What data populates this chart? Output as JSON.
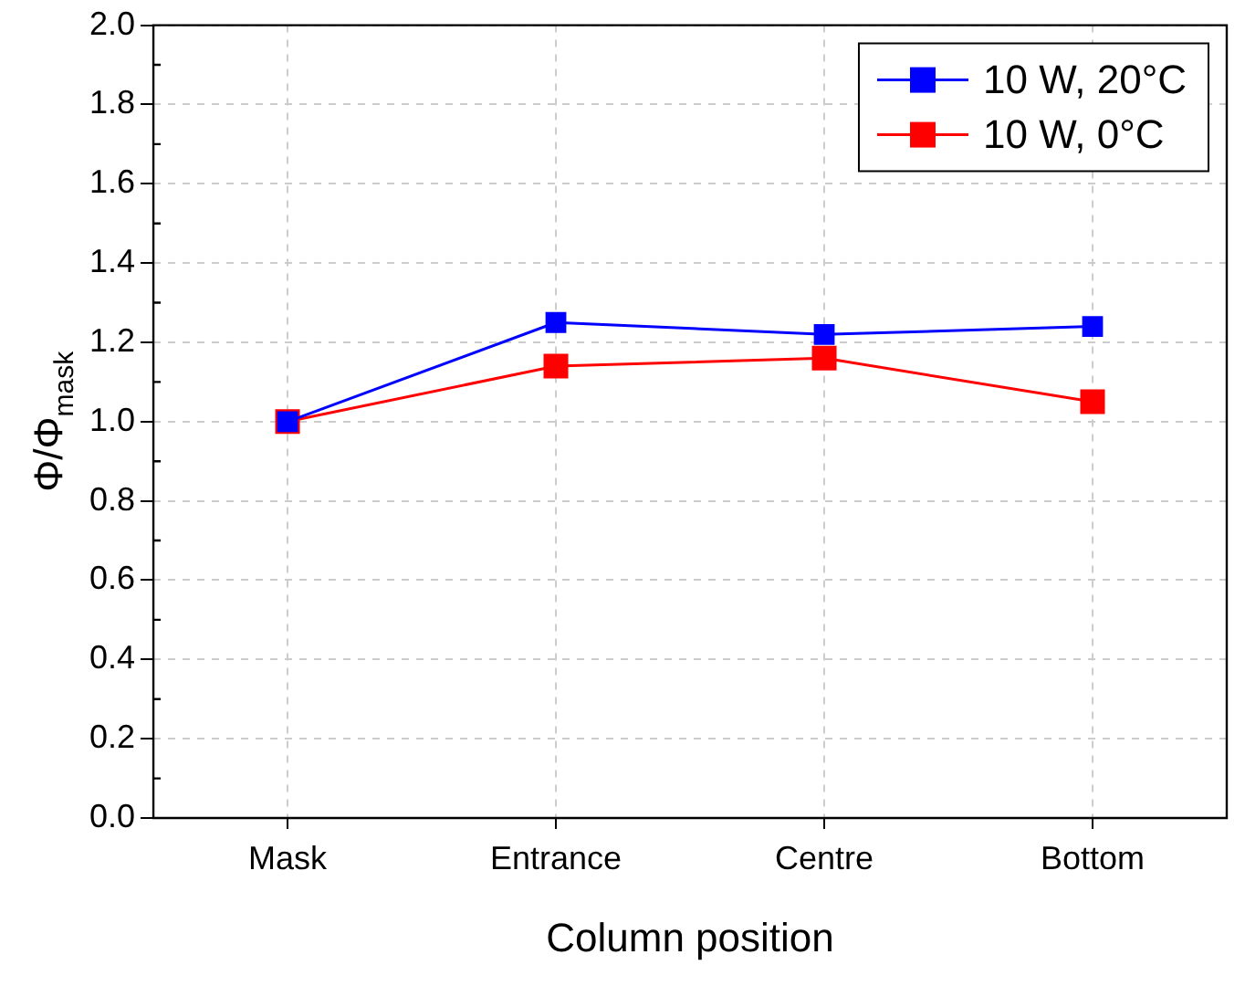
{
  "chart_data": {
    "type": "line",
    "xlabel": "Column position",
    "ylabel": "Φ/Φ$_{mask}$",
    "categories": [
      "Mask",
      "Entrance",
      "Centre",
      "Bottom"
    ],
    "series": [
      {
        "name": "10 W, 20°C",
        "color": "#0000ff",
        "values": [
          1.0,
          1.25,
          1.22,
          1.24
        ]
      },
      {
        "name": "10 W, 0°C",
        "color": "#ff0000",
        "values": [
          1.0,
          1.14,
          1.16,
          1.05
        ]
      }
    ],
    "ylim": [
      0,
      2
    ],
    "yticks": [
      {
        "value": 0,
        "label": "0.0"
      },
      0.2,
      0.4,
      0.6,
      0.8,
      {
        "value": 1,
        "label": "1.0"
      },
      1.2,
      1.4,
      1.6,
      1.8,
      {
        "value": 2,
        "label": "2.0"
      }
    ],
    "grid": true,
    "legend": "top right",
    "marker": "square",
    "line_style": "solid"
  }
}
